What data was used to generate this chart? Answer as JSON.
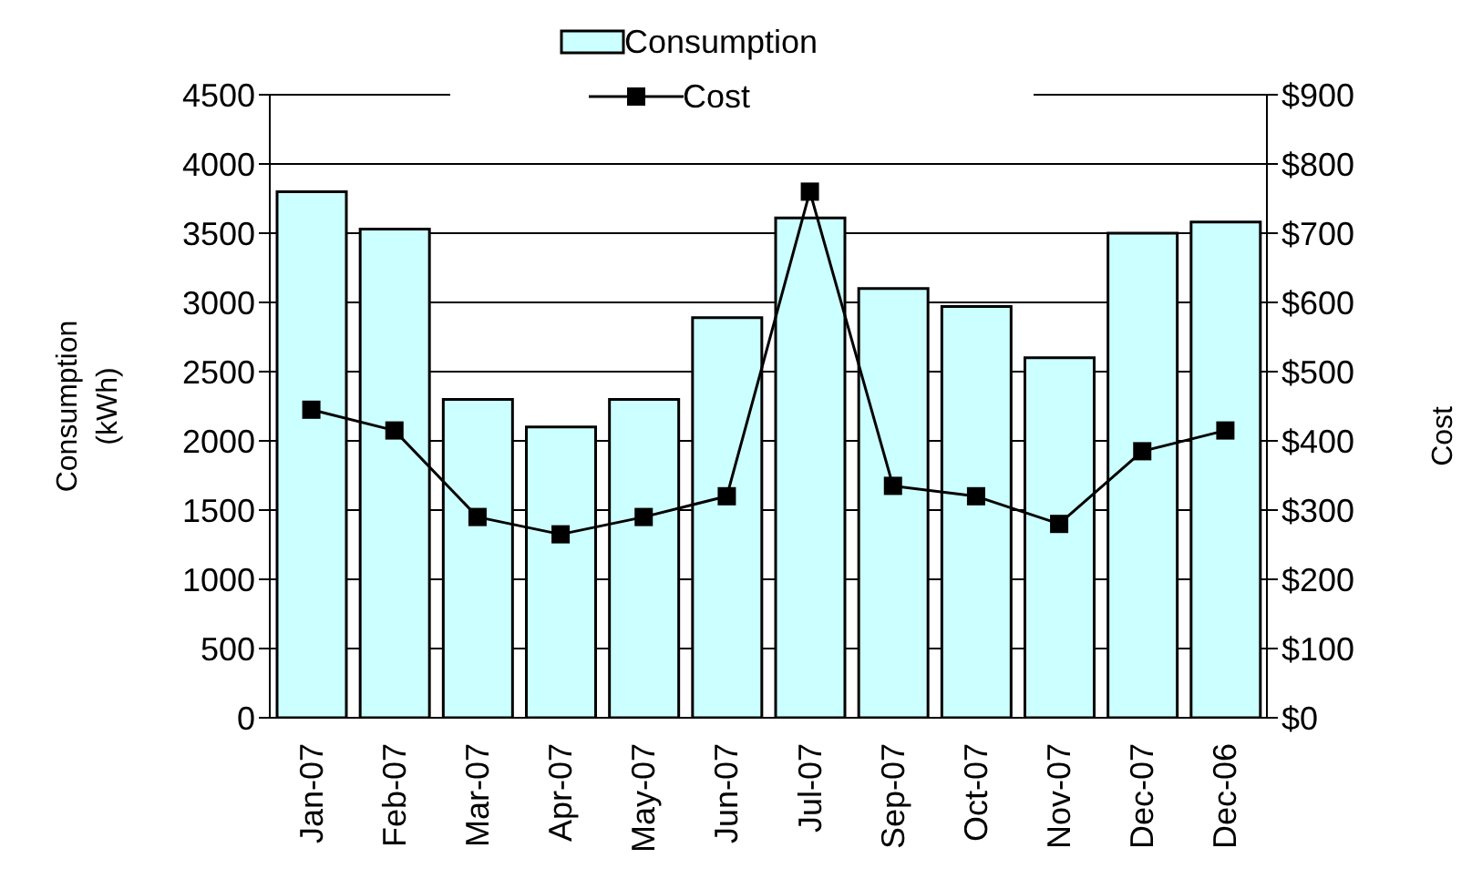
{
  "chart_data": {
    "type": "bar",
    "ylabel": "Consumption\n(kWh)",
    "y2label": "Cost",
    "categories": [
      "Jan-07",
      "Feb-07",
      "Mar-07",
      "Apr-07",
      "May-07",
      "Jun-07",
      "Jul-07",
      "Sep-07",
      "Oct-07",
      "Nov-07",
      "Dec-07",
      "Dec-06"
    ],
    "series": [
      {
        "name": "Consumption",
        "color": "#ccffff",
        "values": [
          3800,
          3530,
          2300,
          2100,
          2300,
          2890,
          3610,
          3100,
          2970,
          2600,
          3500,
          3580
        ]
      },
      {
        "name": "Cost",
        "type": "line",
        "axis": "y2",
        "color": "#000000",
        "marker": "square",
        "values": [
          445,
          415,
          290,
          265,
          290,
          320,
          760,
          335,
          320,
          280,
          385,
          415
        ]
      }
    ],
    "ylim": [
      0,
      4500
    ],
    "yticks": [
      0,
      500,
      1000,
      1500,
      2000,
      2500,
      3000,
      3500,
      4000,
      4500
    ],
    "y2lim": [
      0,
      900
    ],
    "y2ticks": [
      {
        "value": 0,
        "label": "$0"
      },
      {
        "value": 100,
        "label": "$100"
      },
      {
        "value": 200,
        "label": "$200"
      },
      {
        "value": 300,
        "label": "$300"
      },
      {
        "value": 400,
        "label": "$400"
      },
      {
        "value": 500,
        "label": "$500"
      },
      {
        "value": 600,
        "label": "$600"
      },
      {
        "value": 700,
        "label": "$700"
      },
      {
        "value": 800,
        "label": "$800"
      },
      {
        "value": 900,
        "label": "$900"
      }
    ],
    "grid": "y",
    "legend": "top"
  }
}
